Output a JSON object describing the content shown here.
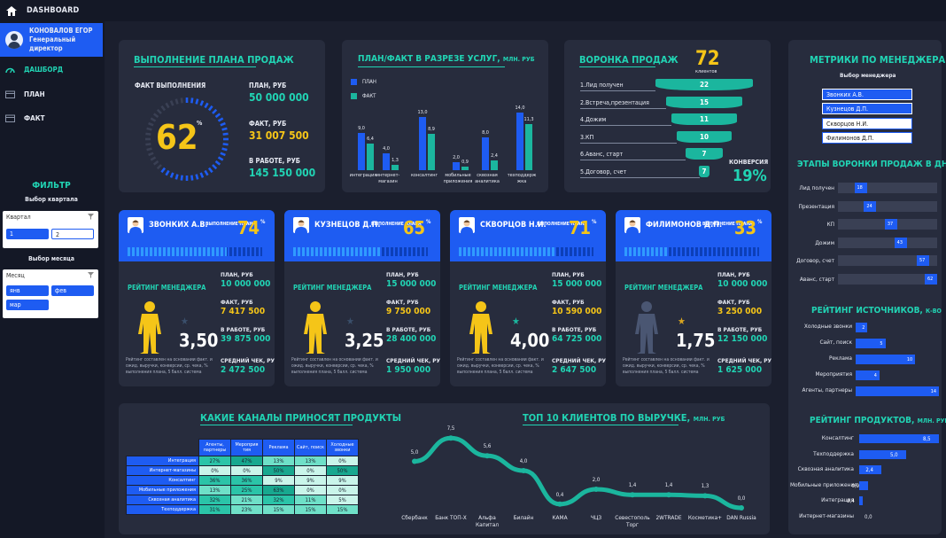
{
  "topbar": {
    "title": "DASHBOARD"
  },
  "user": {
    "name": "КОНОВАЛОВ ЕГОР",
    "role": "Генеральный директор"
  },
  "nav": [
    {
      "label": "ДАШБОРД"
    },
    {
      "label": "ПЛАН"
    },
    {
      "label": "ФАКТ"
    }
  ],
  "filter": {
    "title": "ФИЛЬТР",
    "quarter_title": "Выбор квартала",
    "quarter_label": "Квартал",
    "quarters": [
      "1",
      "2"
    ],
    "month_title": "Выбор месяца",
    "month_label": "Месяц",
    "months": [
      "янв",
      "фев",
      "мар"
    ]
  },
  "plan": {
    "title": "ВЫПОЛНЕНИЕ ПЛАНА ПРОДАЖ",
    "fact_label": "ФАКТ ВЫПОЛНЕНИЯ",
    "percent": "62",
    "percent_sign": "%",
    "percent_value": 0.62,
    "plan_label": "ПЛАН, РУБ",
    "plan_value": "50 000 000",
    "fact_rub_label": "ФАКТ, РУБ",
    "fact_value": "31 007 500",
    "work_label": "В РАБОТЕ, РУБ",
    "work_value": "145 150 000"
  },
  "planfact": {
    "title": "ПЛАН/ФАКТ В РАЗРЕЗЕ УСЛУГ,",
    "unit": "МЛН. РУБ",
    "legend_plan": "ПЛАН",
    "legend_fact": "ФАКТ",
    "colors": {
      "plan": "#1e5cf2",
      "fact": "#1bb69e"
    }
  },
  "chart_data": [
    {
      "type": "bar",
      "title": "ПЛАН/ФАКТ В РАЗРЕЗЕ УСЛУГ, МЛН. РУБ",
      "categories": [
        "интеграция",
        "интернет-магазин",
        "консалтинг",
        "мобильные приложения",
        "сквозная аналитика",
        "техподдерж жка"
      ],
      "series": [
        {
          "name": "ПЛАН",
          "values": [
            9.0,
            4.0,
            13.0,
            2.0,
            8.0,
            14.0
          ]
        },
        {
          "name": "ФАКТ",
          "values": [
            6.4,
            1.3,
            8.9,
            0.9,
            2.4,
            11.3
          ]
        }
      ],
      "value_labels": {
        "ПЛАН": [
          "9,0",
          "4,0",
          "13,0",
          "2,0",
          "8,0",
          "14,0"
        ],
        "ФАКТ": [
          "6,4",
          "1,3",
          "8,9",
          "0,9",
          "2,4",
          "11,3"
        ]
      }
    },
    {
      "type": "line",
      "title": "ТОП 10 КЛИЕНТОВ ПО ВЫРУЧКЕ, МЛН. РУБ",
      "categories": [
        "Сбербанк",
        "Банк ТОП-Х",
        "Альфа Капитал",
        "Билайн",
        "КАМА",
        "ЧЦЗ",
        "Севестополь Торг",
        "2WTRADE",
        "Косметика+",
        "DAN Russia"
      ],
      "values": [
        5.0,
        7.5,
        5.6,
        4.0,
        0.4,
        2.0,
        1.4,
        1.4,
        1.3,
        0.0
      ],
      "value_labels": [
        "5,0",
        "7,5",
        "5,6",
        "4,0",
        "0,4",
        "2,0",
        "1,4",
        "1,4",
        "1,3",
        "0,0"
      ]
    }
  ],
  "funnel": {
    "title": "ВОРОНКА ПРОДАЖ",
    "clients": "72",
    "clients_label": "клиентов",
    "stages": [
      {
        "label": "1.Лид получен",
        "value": "22"
      },
      {
        "label": "2.Встреча,презентация",
        "value": "15"
      },
      {
        "label": "4.Дожим",
        "value": "11"
      },
      {
        "label": "3.КП",
        "value": "10"
      },
      {
        "label": "6.Аванс, старт",
        "value": "7"
      },
      {
        "label": "5.Договор, счет",
        "value": "7"
      }
    ],
    "conversion_label": "КОНВЕРСИЯ",
    "conversion": "19%"
  },
  "managers": [
    {
      "name": "ЗВОНКИХ А.В.",
      "percent": "74",
      "pct_value": 0.74,
      "plan": "10 000 000",
      "fact": "7 417 500",
      "work": "39 875 000",
      "score": "3,50",
      "avg": "2 472 500",
      "star_color": "#3a4f6b",
      "fig_color": "#f5c518"
    },
    {
      "name": "КУЗНЕЦОВ Д.П.",
      "percent": "65",
      "pct_value": 0.65,
      "plan": "15 000 000",
      "fact": "9 750 000",
      "work": "28 400 000",
      "score": "3,25",
      "avg": "1 950 000",
      "star_color": "#3a4f6b",
      "fig_color": "#f5c518"
    },
    {
      "name": "СКВОРЦОВ Н.И.",
      "percent": "71",
      "pct_value": 0.71,
      "plan": "15 000 000",
      "fact": "10 590 000",
      "work": "64 725 000",
      "score": "4,00",
      "avg": "2 647 500",
      "star_color": "#1bb69e",
      "fig_color": "#f5c518"
    },
    {
      "name": "ФИЛИМОНОВ Д.П.",
      "percent": "33",
      "pct_value": 0.33,
      "plan": "10 000 000",
      "fact": "3 250 000",
      "work": "12 150 000",
      "score": "1,75",
      "avg": "1 625 000",
      "star_color": "#d9a520",
      "fig_color": "#4a5672"
    }
  ],
  "mgr_labels": {
    "vp": "ВЫПОЛНЕНИЕ ПЛАНА",
    "pct_sign": "%",
    "rating": "РЕЙТИНГ МЕНЕДЖЕРА",
    "plan": "ПЛАН, РУБ",
    "fact": "ФАКТ, РУБ",
    "work": "В РАБОТЕ, РУБ",
    "avg": "СРЕДНИЙ ЧЕК, РУБ",
    "note": "Рейтинг составлен на основании факт. и ожид. выручки, конверсии, ср. чека, % выполнения плана, 5 балл. система"
  },
  "metrics": {
    "title": "МЕТРИКИ ПО МЕНЕДЖЕРАМ",
    "sub": "Выбор менеджера",
    "list": [
      {
        "name": "Звонких А.В."
      },
      {
        "name": "Кузнецов Д.П."
      },
      {
        "name": "Скворцов Н.И."
      },
      {
        "name": "Филимонов Д.П."
      }
    ]
  },
  "stages_days": {
    "title": "ЭТАПЫ ВОРОНКИ ПРОДАЖ В ДНЯХ",
    "max": 62,
    "items": [
      {
        "label": "Лид получен",
        "value": 18
      },
      {
        "label": "Презентация",
        "value": 24
      },
      {
        "label": "КП",
        "value": 37
      },
      {
        "label": "Дожим",
        "value": 43
      },
      {
        "label": "Договор, счет",
        "value": 57
      },
      {
        "label": "Аванс, старт",
        "value": 62
      }
    ]
  },
  "sources": {
    "title": "РЕЙТИНГ ИСТОЧНИКОВ,",
    "unit": "К-ВО",
    "max": 14,
    "items": [
      {
        "label": "Холодные звонки",
        "value": 2
      },
      {
        "label": "Сайт, поиск",
        "value": 5
      },
      {
        "label": "Реклама",
        "value": 10
      },
      {
        "label": "Мероприятия",
        "value": 4
      },
      {
        "label": "Агенты, партнеры",
        "value": 14
      }
    ]
  },
  "products": {
    "title": "РЕЙТИНГ ПРОДУКТОВ,",
    "unit": "МЛН. РУБ",
    "max": 8.5,
    "items": [
      {
        "label": "Консалтинг",
        "value": 8.5,
        "text": "8,5"
      },
      {
        "label": "Техподдержка",
        "value": 5.0,
        "text": "5,0"
      },
      {
        "label": "Сквозная аналитика",
        "value": 2.4,
        "text": "2,4"
      },
      {
        "label": "Мобильные приложения",
        "value": 0.9,
        "text": "0,9"
      },
      {
        "label": "Интеграция",
        "value": 0.4,
        "text": "0,4"
      },
      {
        "label": "Интернет-магазины",
        "value": 0.0,
        "text": "0,0"
      }
    ]
  },
  "channels": {
    "title": "КАКИЕ КАНАЛЫ ПРИНОСЯТ ПРОДУКТЫ",
    "columns": [
      "Агенты, партнеры",
      "Мероприя тия",
      "Реклама",
      "Сайт, поиск",
      "Холодные звонки"
    ],
    "rows": [
      {
        "name": "Интеграция",
        "cells": [
          "27%",
          "47%",
          "13%",
          "13%",
          "0%"
        ]
      },
      {
        "name": "Интернет-магазины",
        "cells": [
          "0%",
          "0%",
          "50%",
          "0%",
          "50%"
        ]
      },
      {
        "name": "Консалтинг",
        "cells": [
          "36%",
          "36%",
          "9%",
          "9%",
          "9%"
        ]
      },
      {
        "name": "Мобильные приложения",
        "cells": [
          "13%",
          "25%",
          "63%",
          "0%",
          "0%"
        ]
      },
      {
        "name": "Сквозная аналитика",
        "cells": [
          "32%",
          "21%",
          "32%",
          "11%",
          "5%"
        ]
      },
      {
        "name": "Техподдержка",
        "cells": [
          "31%",
          "23%",
          "15%",
          "15%",
          "15%"
        ]
      }
    ]
  },
  "clients": {
    "title": "ТОП 10 КЛИЕНТОВ ПО ВЫРУЧКЕ,",
    "unit": "МЛН. РУБ"
  }
}
